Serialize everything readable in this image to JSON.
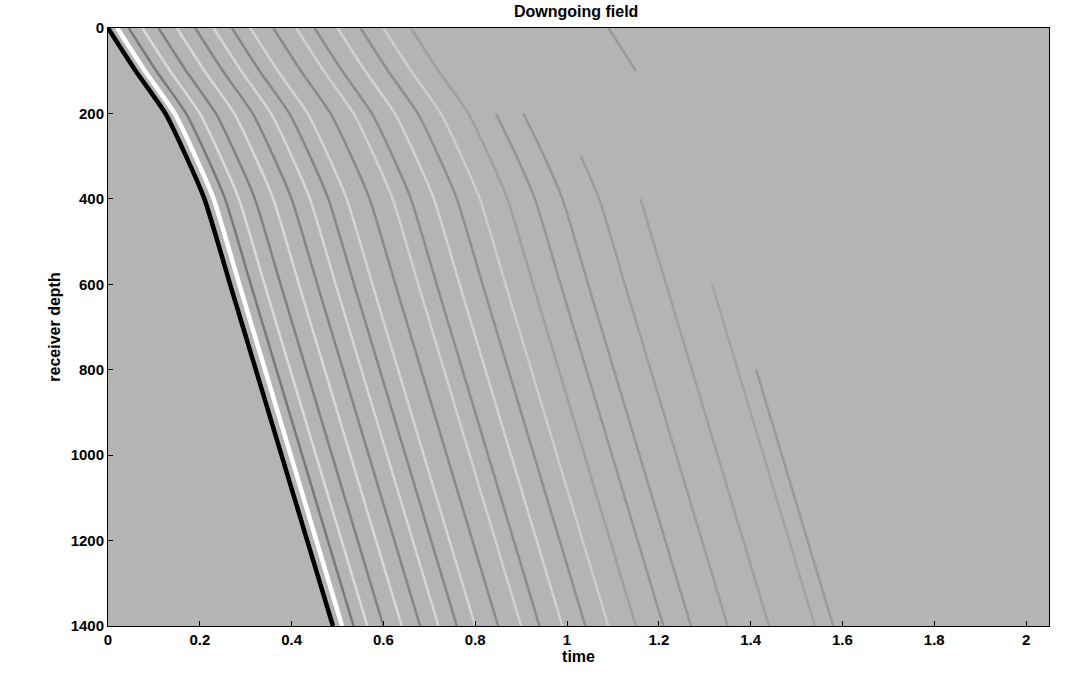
{
  "chart_data": {
    "type": "line",
    "title": "Downgoing field",
    "x_label": "time",
    "y_label": "receiver depth",
    "y": [
      0,
      100,
      200,
      300,
      400,
      600,
      800,
      1000,
      1200,
      1400
    ],
    "series": [
      {
        "color": "#9a9a9a",
        "values": [
          1.09,
          1.15,
          null,
          null,
          null,
          null,
          1.412,
          1.468,
          1.524,
          1.58
        ]
      },
      {
        "color": "#a2a2a2",
        "values": [
          null,
          null,
          null,
          null,
          null,
          1.316,
          1.372,
          1.428,
          1.484,
          1.54
        ]
      },
      {
        "color": "#a0a0a0",
        "values": [
          null,
          null,
          null,
          null,
          1.16,
          1.216,
          1.272,
          1.328,
          1.384,
          1.44
        ]
      },
      {
        "color": "#9c9c9c",
        "values": [
          null,
          null,
          null,
          1.03,
          1.07,
          1.126,
          1.182,
          1.238,
          1.294,
          1.35
        ]
      },
      {
        "color": "#969696",
        "values": [
          null,
          null,
          0.905,
          0.95,
          0.99,
          1.046,
          1.102,
          1.158,
          1.214,
          1.27
        ]
      },
      {
        "color": "#959595",
        "values": [
          null,
          null,
          0.845,
          0.89,
          0.93,
          0.986,
          1.042,
          1.098,
          1.154,
          1.21
        ]
      },
      {
        "color": "#a0a0a0",
        "values": [
          0.66,
          0.72,
          0.785,
          0.83,
          0.87,
          0.926,
          0.982,
          1.038,
          1.094,
          1.15
        ]
      },
      {
        "color": "#cdcdcd",
        "values": [
          0.6,
          0.66,
          0.725,
          0.77,
          0.81,
          0.866,
          0.922,
          0.978,
          1.034,
          1.09
        ]
      },
      {
        "color": "#8f8f8f",
        "values": [
          0.55,
          0.61,
          0.675,
          0.72,
          0.76,
          0.816,
          0.872,
          0.928,
          0.984,
          1.04
        ]
      },
      {
        "color": "#d2d2d2",
        "values": [
          0.5,
          0.56,
          0.625,
          0.67,
          0.71,
          0.766,
          0.822,
          0.878,
          0.934,
          0.99
        ]
      },
      {
        "color": "#8c8c8c",
        "values": [
          0.45,
          0.51,
          0.575,
          0.62,
          0.66,
          0.716,
          0.772,
          0.828,
          0.884,
          0.94
        ]
      },
      {
        "color": "#d0d0d0",
        "values": [
          0.41,
          0.47,
          0.535,
          0.58,
          0.62,
          0.676,
          0.732,
          0.788,
          0.844,
          0.9
        ]
      },
      {
        "color": "#8a8a8a",
        "values": [
          0.36,
          0.42,
          0.485,
          0.53,
          0.57,
          0.626,
          0.682,
          0.738,
          0.794,
          0.85
        ]
      },
      {
        "color": "#d4d4d4",
        "values": [
          0.31,
          0.37,
          0.435,
          0.48,
          0.52,
          0.576,
          0.632,
          0.688,
          0.744,
          0.8
        ]
      },
      {
        "color": "#878787",
        "values": [
          0.27,
          0.33,
          0.395,
          0.44,
          0.48,
          0.536,
          0.592,
          0.648,
          0.704,
          0.76
        ]
      },
      {
        "color": "#d6d6d6",
        "values": [
          0.23,
          0.29,
          0.355,
          0.4,
          0.44,
          0.496,
          0.552,
          0.608,
          0.664,
          0.72
        ]
      },
      {
        "color": "#858585",
        "values": [
          0.19,
          0.25,
          0.315,
          0.36,
          0.4,
          0.456,
          0.512,
          0.568,
          0.624,
          0.68
        ]
      },
      {
        "color": "#d8d8d8",
        "values": [
          0.15,
          0.21,
          0.275,
          0.32,
          0.36,
          0.416,
          0.472,
          0.528,
          0.584,
          0.64
        ]
      },
      {
        "color": "#828282",
        "values": [
          0.11,
          0.17,
          0.235,
          0.28,
          0.32,
          0.376,
          0.432,
          0.488,
          0.544,
          0.6
        ]
      },
      {
        "color": "#dadada",
        "values": [
          0.075,
          0.135,
          0.2,
          0.245,
          0.285,
          0.341,
          0.397,
          0.453,
          0.509,
          0.565
        ]
      },
      {
        "color": "#7a7a7a",
        "values": [
          0.045,
          0.105,
          0.17,
          0.215,
          0.255,
          0.311,
          0.367,
          0.423,
          0.479,
          0.535
        ]
      },
      {
        "color": "#ffffff",
        "values": [
          0.02,
          0.08,
          0.145,
          0.19,
          0.23,
          0.286,
          0.342,
          0.398,
          0.454,
          0.51
        ]
      },
      {
        "color": "#000000",
        "values": [
          0,
          0.06,
          0.125,
          0.17,
          0.21,
          0.266,
          0.322,
          0.378,
          0.434,
          0.49
        ]
      }
    ],
    "xlim": [
      0,
      2.05
    ],
    "xticks": [
      0,
      0.2,
      0.4,
      0.6,
      0.8,
      1,
      1.2,
      1.4,
      1.6,
      1.8,
      2
    ],
    "ylim": [
      1400,
      0
    ],
    "yticks": [
      0,
      200,
      400,
      600,
      800,
      1000,
      1200,
      1400
    ],
    "grid": false
  }
}
